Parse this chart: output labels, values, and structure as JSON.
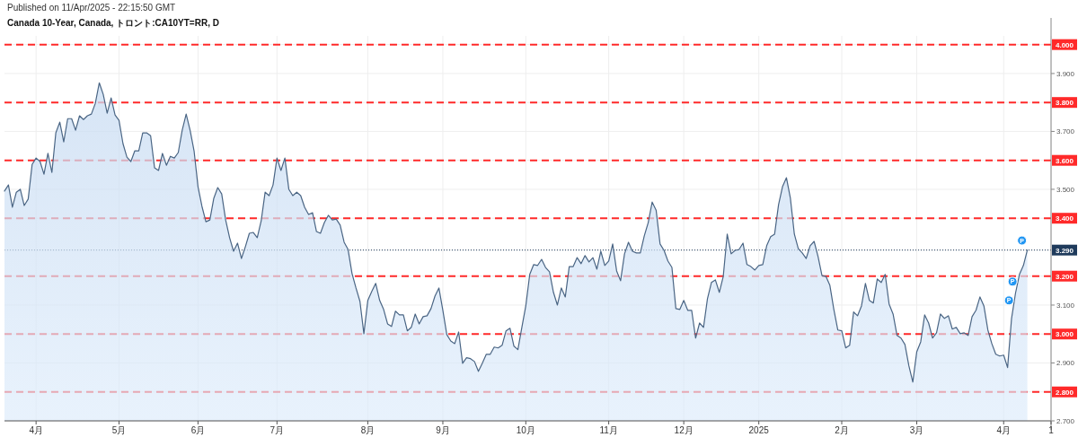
{
  "chart_data": {
    "type": "area",
    "title": "Canada 10-Year, Canada, トロント:CA10YT=RR, D",
    "annotations": [
      "Published on 11/Apr/2025 - 22:15:50 GMT",
      {
        "text": "P",
        "y": 3.116
      },
      {
        "text": "P",
        "y": 3.181
      },
      {
        "text": "P",
        "y": 3.323
      }
    ],
    "categories": [
      null,
      null,
      null,
      null,
      null,
      null,
      null,
      null,
      "4月",
      null,
      null,
      null,
      null,
      null,
      null,
      null,
      null,
      null,
      null,
      null,
      null,
      null,
      null,
      null,
      null,
      null,
      null,
      null,
      null,
      "5月",
      null,
      null,
      null,
      null,
      null,
      null,
      null,
      null,
      null,
      null,
      null,
      null,
      null,
      null,
      null,
      null,
      null,
      null,
      null,
      "6月",
      null,
      null,
      null,
      null,
      null,
      null,
      null,
      null,
      null,
      null,
      null,
      null,
      null,
      null,
      null,
      null,
      null,
      null,
      null,
      "7月",
      null,
      null,
      null,
      null,
      null,
      null,
      null,
      null,
      null,
      null,
      null,
      null,
      null,
      null,
      null,
      null,
      null,
      null,
      null,
      null,
      null,
      null,
      "8月",
      null,
      null,
      null,
      null,
      null,
      null,
      null,
      null,
      null,
      null,
      null,
      null,
      null,
      null,
      null,
      null,
      null,
      null,
      "9月",
      null,
      null,
      null,
      null,
      null,
      null,
      null,
      null,
      null,
      null,
      null,
      null,
      null,
      null,
      null,
      null,
      null,
      null,
      null,
      null,
      "10月",
      null,
      null,
      null,
      null,
      null,
      null,
      null,
      null,
      null,
      null,
      null,
      null,
      null,
      null,
      null,
      null,
      null,
      null,
      null,
      null,
      "11月",
      null,
      null,
      null,
      null,
      null,
      null,
      null,
      null,
      null,
      null,
      null,
      null,
      null,
      null,
      null,
      null,
      null,
      null,
      "12月",
      null,
      null,
      null,
      null,
      null,
      null,
      null,
      null,
      null,
      null,
      null,
      null,
      null,
      null,
      null,
      null,
      null,
      null,
      "2025",
      null,
      null,
      null,
      null,
      null,
      null,
      null,
      null,
      null,
      null,
      null,
      null,
      null,
      null,
      null,
      null,
      null,
      null,
      null,
      null,
      "2月",
      null,
      null,
      null,
      null,
      null,
      null,
      null,
      null,
      null,
      null,
      null,
      null,
      null,
      null,
      null,
      null,
      null,
      null,
      "3月",
      null,
      null,
      null,
      null,
      null,
      null,
      null,
      null,
      null,
      null,
      null,
      null,
      null,
      null,
      null,
      null,
      null,
      null,
      null,
      null,
      null,
      "4月",
      null,
      null,
      null,
      null,
      null,
      null,
      null,
      null,
      null,
      null,
      null,
      "1"
    ],
    "series": [
      {
        "color": "#4a6584",
        "values": [
          3.494,
          3.515,
          3.438,
          3.49,
          3.5,
          3.444,
          3.466,
          3.586,
          3.608,
          3.596,
          3.552,
          3.624,
          3.558,
          3.695,
          3.732,
          3.664,
          3.744,
          3.744,
          3.704,
          3.754,
          3.741,
          3.754,
          3.76,
          3.797,
          3.868,
          3.828,
          3.763,
          3.816,
          3.757,
          3.738,
          3.658,
          3.611,
          3.596,
          3.633,
          3.633,
          3.695,
          3.695,
          3.685,
          3.574,
          3.565,
          3.624,
          3.583,
          3.614,
          3.608,
          3.627,
          3.704,
          3.76,
          3.704,
          3.633,
          3.509,
          3.441,
          3.388,
          3.394,
          3.469,
          3.506,
          3.484,
          3.394,
          3.333,
          3.286,
          3.314,
          3.261,
          3.302,
          3.348,
          3.351,
          3.333,
          3.391,
          3.49,
          3.478,
          3.515,
          3.608,
          3.565,
          3.608,
          3.5,
          3.478,
          3.49,
          3.478,
          3.438,
          3.413,
          3.419,
          3.354,
          3.348,
          3.385,
          3.41,
          3.394,
          3.397,
          3.376,
          3.317,
          3.292,
          3.209,
          3.159,
          3.113,
          3.001,
          3.116,
          3.147,
          3.175,
          3.116,
          3.085,
          3.035,
          3.026,
          3.079,
          3.066,
          3.066,
          3.011,
          3.023,
          3.069,
          3.035,
          3.06,
          3.063,
          3.088,
          3.131,
          3.159,
          3.082,
          2.998,
          2.976,
          2.967,
          3.007,
          2.899,
          2.918,
          2.915,
          2.905,
          2.871,
          2.899,
          2.93,
          2.93,
          2.955,
          2.952,
          2.961,
          3.011,
          3.02,
          2.958,
          2.946,
          3.023,
          3.097,
          3.206,
          3.24,
          3.237,
          3.258,
          3.23,
          3.215,
          3.144,
          3.1,
          3.159,
          3.128,
          3.233,
          3.233,
          3.264,
          3.243,
          3.271,
          3.249,
          3.264,
          3.224,
          3.286,
          3.237,
          3.252,
          3.311,
          3.218,
          3.184,
          3.277,
          3.317,
          3.286,
          3.28,
          3.28,
          3.339,
          3.385,
          3.456,
          3.428,
          3.311,
          3.289,
          3.252,
          3.23,
          3.088,
          3.085,
          3.116,
          3.082,
          3.082,
          2.986,
          3.038,
          3.023,
          3.122,
          3.178,
          3.187,
          3.144,
          3.199,
          3.345,
          3.277,
          3.289,
          3.292,
          3.314,
          3.24,
          3.233,
          3.221,
          3.237,
          3.24,
          3.305,
          3.336,
          3.345,
          3.447,
          3.509,
          3.54,
          3.469,
          3.345,
          3.295,
          3.28,
          3.261,
          3.305,
          3.32,
          3.268,
          3.202,
          3.199,
          3.168,
          3.085,
          3.014,
          3.011,
          2.952,
          2.961,
          3.076,
          3.063,
          3.097,
          3.175,
          3.116,
          3.107,
          3.19,
          3.178,
          3.206,
          3.103,
          3.069,
          2.995,
          2.986,
          2.964,
          2.89,
          2.834,
          2.939,
          2.973,
          3.066,
          3.038,
          2.986,
          3.004,
          3.069,
          3.054,
          3.063,
          3.017,
          3.023,
          3.001,
          3.004,
          2.995,
          3.06,
          3.082,
          3.128,
          3.097,
          3.014,
          2.967,
          2.93,
          2.924,
          2.927,
          2.884,
          3.054,
          3.141,
          3.206,
          3.237,
          3.29,
          null,
          null,
          null,
          null,
          null,
          null
        ]
      }
    ],
    "ylim": [
      2.7,
      4.03
    ],
    "yticks": [
      {
        "value": 2.7,
        "label": "2.700"
      },
      {
        "value": 2.9,
        "label": "2.900"
      },
      {
        "value": 3.1,
        "label": "3.100"
      },
      {
        "value": 3.5,
        "label": "3.500"
      },
      {
        "value": 3.7,
        "label": "3.700"
      },
      {
        "value": 3.9,
        "label": "3.900"
      }
    ],
    "ref_lines": [
      {
        "axis": "y",
        "value": 2.8,
        "label": "2.800",
        "color": "#ff2a2a",
        "line_style": "dashed"
      },
      {
        "axis": "y",
        "value": 3.0,
        "label": "3.000",
        "color": "#ff2a2a",
        "line_style": "dashed"
      },
      {
        "axis": "y",
        "value": 3.2,
        "label": "3.200",
        "color": "#ff2a2a",
        "line_style": "dashed"
      },
      {
        "axis": "y",
        "value": 3.4,
        "label": "3.400",
        "color": "#ff2a2a",
        "line_style": "dashed"
      },
      {
        "axis": "y",
        "value": 3.6,
        "label": "3.600",
        "color": "#ff2a2a",
        "line_style": "dashed"
      },
      {
        "axis": "y",
        "value": 3.8,
        "label": "3.800",
        "color": "#ff2a2a",
        "line_style": "dashed"
      },
      {
        "axis": "y",
        "value": 4.0,
        "label": "4.000",
        "color": "#ff2a2a",
        "line_style": "dashed"
      },
      {
        "axis": "y",
        "value": 3.29,
        "label": "3.290",
        "color": "#1f3b5c",
        "line_style": "dotted"
      }
    ],
    "grid": true
  }
}
